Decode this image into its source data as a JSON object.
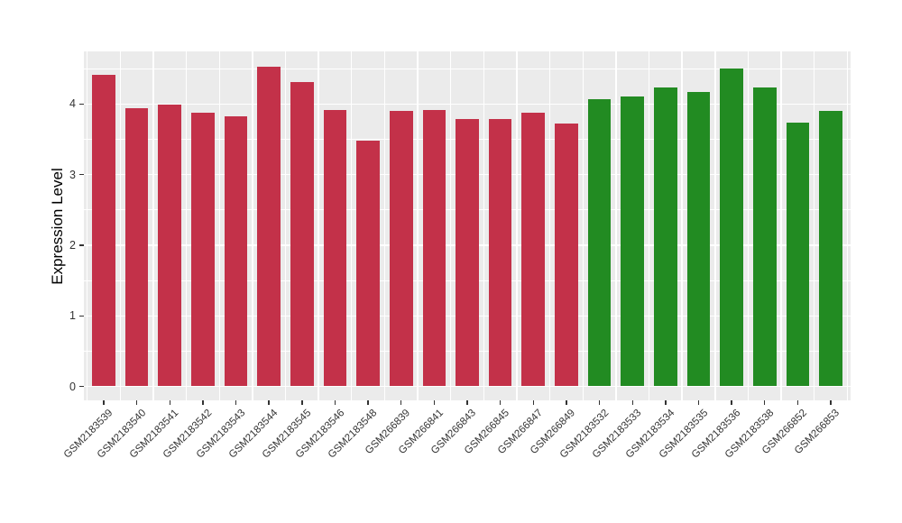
{
  "figure": {
    "background": "#FFFFFF"
  },
  "chart_data": {
    "type": "bar",
    "title": "",
    "xlabel": "",
    "ylabel": "Expression Level",
    "ylim": [
      0,
      4.77
    ],
    "yticks": [
      "0",
      "1",
      "2",
      "3",
      "4"
    ],
    "grid": "on",
    "legend": "none",
    "panel_background": "#EBEBEB",
    "gridline_color": "#FFFFFF",
    "group_colors": {
      "crimson_group": "#C33149",
      "green_group": "#228B22"
    },
    "categories": [
      "GSM2183539",
      "GSM2183540",
      "GSM2183541",
      "GSM2183542",
      "GSM2183543",
      "GSM2183544",
      "GSM2183545",
      "GSM2183546",
      "GSM2183548",
      "GSM266839",
      "GSM266841",
      "GSM266843",
      "GSM266845",
      "GSM266847",
      "GSM266849",
      "GSM2183532",
      "GSM2183533",
      "GSM2183534",
      "GSM2183535",
      "GSM2183536",
      "GSM2183538",
      "GSM266852",
      "GSM266853"
    ],
    "values": [
      4.41,
      3.94,
      3.99,
      3.87,
      3.83,
      4.53,
      4.31,
      3.92,
      3.48,
      3.9,
      3.92,
      3.79,
      3.79,
      3.88,
      3.72,
      4.07,
      4.11,
      4.24,
      4.17,
      4.5,
      4.23,
      3.73,
      3.9
    ],
    "bar_colors": [
      "#C33149",
      "#C33149",
      "#C33149",
      "#C33149",
      "#C33149",
      "#C33149",
      "#C33149",
      "#C33149",
      "#C33149",
      "#C33149",
      "#C33149",
      "#C33149",
      "#C33149",
      "#C33149",
      "#C33149",
      "#228B22",
      "#228B22",
      "#228B22",
      "#228B22",
      "#228B22",
      "#228B22",
      "#228B22",
      "#228B22"
    ]
  }
}
